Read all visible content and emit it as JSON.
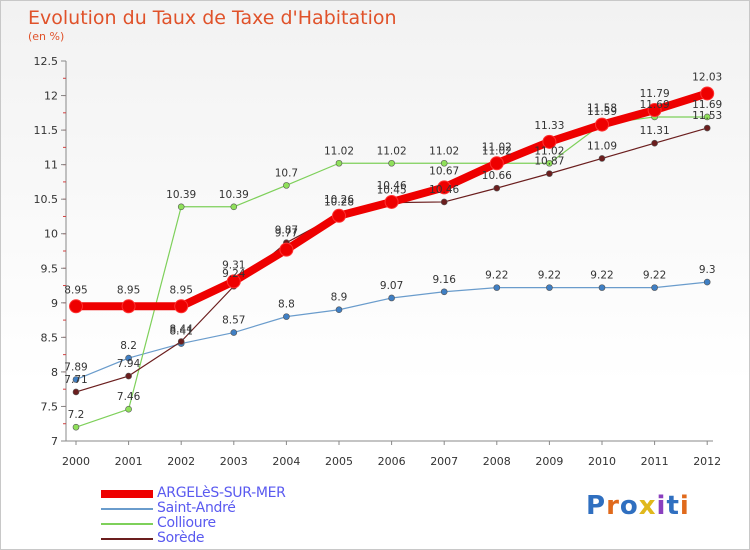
{
  "chart_data": {
    "type": "line",
    "title": "Evolution du Taux de Taxe d'Habitation",
    "subtitle": "(en %)",
    "x": [
      "2000",
      "2001",
      "2002",
      "2003",
      "2004",
      "2005",
      "2006",
      "2007",
      "2008",
      "2009",
      "2010",
      "2011",
      "2012"
    ],
    "ylim": [
      7,
      12.5
    ],
    "yticks": [
      "7",
      "7.5",
      "8",
      "8.5",
      "9",
      "9.5",
      "10",
      "10.5",
      "11",
      "11.5",
      "12",
      "12.5"
    ],
    "grid": false,
    "legend_position": "bottom-left",
    "series": [
      {
        "name": "ARGELèS-SUR-MER",
        "color": "#ee0000",
        "values": [
          8.95,
          8.95,
          8.95,
          9.31,
          9.77,
          10.26,
          10.46,
          10.67,
          11.02,
          11.33,
          11.58,
          11.79,
          12.03
        ],
        "labels": [
          "8.95",
          "8.95",
          "8.95",
          "9.31",
          "9.77",
          "10.26",
          "10.46",
          "10.67",
          "11.02",
          "11.33",
          "11.58",
          "11.79",
          "12.03"
        ]
      },
      {
        "name": "Saint-André",
        "color": "#6a9ccc",
        "values": [
          7.89,
          8.2,
          8.41,
          8.57,
          8.8,
          8.9,
          9.07,
          9.16,
          9.22,
          9.22,
          9.22,
          9.22,
          9.3
        ],
        "labels": [
          "7.89",
          "8.2",
          "8.41",
          "8.57",
          "8.8",
          "8.9",
          "9.07",
          "9.16",
          "9.22",
          "9.22",
          "9.22",
          "9.22",
          "9.3"
        ]
      },
      {
        "name": "Collioure",
        "color": "#7ed05a",
        "values": [
          7.2,
          7.46,
          10.39,
          10.39,
          10.7,
          11.02,
          11.02,
          11.02,
          11.02,
          11.02,
          11.59,
          11.69,
          11.69
        ],
        "labels": [
          "7.2",
          "7.46",
          "10.39",
          "10.39",
          "10.7",
          "11.02",
          "11.02",
          "11.02",
          "11.02",
          "11.02",
          "11.59",
          "11.69",
          "11.69"
        ]
      },
      {
        "name": "Sorède",
        "color": "#6b1e1e",
        "values": [
          7.71,
          7.94,
          8.44,
          9.24,
          9.87,
          10.28,
          10.45,
          10.46,
          10.66,
          10.87,
          11.09,
          11.31,
          11.53
        ],
        "labels": [
          "7.71",
          "7.94",
          "8.44",
          "9.24",
          "9.87",
          "10.28",
          "10.45",
          "10.46",
          "10.66",
          "10.87",
          "11.09",
          "11.31",
          "11.53"
        ]
      }
    ]
  },
  "logo": {
    "text": "Proxiti",
    "letter_colors": [
      "#2f6fc0",
      "#e06a1c",
      "#2f6fc0",
      "#e0b81c",
      "#8a3fbf",
      "#2f6fc0",
      "#e06a1c"
    ]
  }
}
